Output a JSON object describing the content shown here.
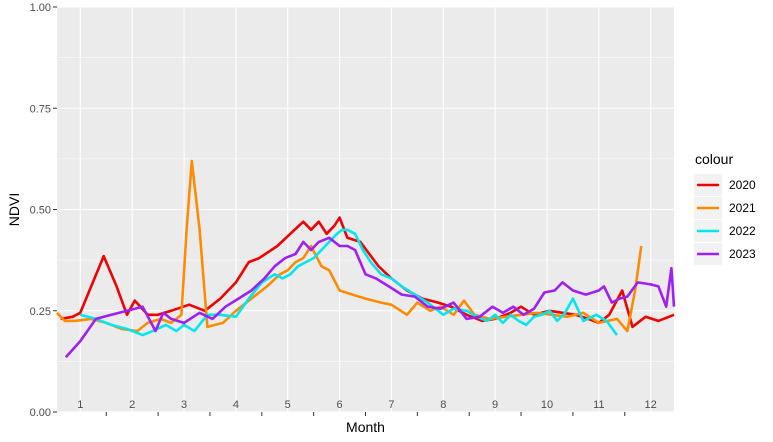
{
  "chart_data": {
    "type": "line",
    "title": "",
    "xlabel": "Month",
    "ylabel": "NDVI",
    "ylim": [
      0,
      1
    ],
    "xlim": [
      0.55,
      12.45
    ],
    "yticks": [
      0,
      0.25,
      0.5,
      0.75,
      1
    ],
    "ytick_labels": [
      "0.00",
      "0.25",
      "0.50",
      "0.75",
      "1.00"
    ],
    "month_labels": [
      "1",
      "2",
      "3",
      "4",
      "5",
      "6",
      "7",
      "8",
      "9",
      "10",
      "11",
      "12"
    ],
    "grid": true,
    "legend": {
      "title": "colour",
      "position": "right"
    },
    "series": [
      {
        "name": "2020",
        "color": "#ee0000",
        "x": [
          0.62,
          0.85,
          1.0,
          1.45,
          1.7,
          1.9,
          2.05,
          2.3,
          2.5,
          2.75,
          3.1,
          3.4,
          3.7,
          4.0,
          4.25,
          4.45,
          4.8,
          5.05,
          5.3,
          5.45,
          5.6,
          5.75,
          5.9,
          6.0,
          6.15,
          6.4,
          6.75,
          7.0,
          7.3,
          7.6,
          7.9,
          8.15,
          8.45,
          8.75,
          9.0,
          9.3,
          9.5,
          9.75,
          10.05,
          10.3,
          10.55,
          10.8,
          11.0,
          11.2,
          11.45,
          11.65,
          11.9,
          12.15,
          12.45
        ],
        "y": [
          0.23,
          0.235,
          0.245,
          0.385,
          0.31,
          0.24,
          0.275,
          0.24,
          0.24,
          0.25,
          0.265,
          0.25,
          0.28,
          0.32,
          0.37,
          0.38,
          0.41,
          0.44,
          0.47,
          0.45,
          0.47,
          0.44,
          0.46,
          0.48,
          0.43,
          0.42,
          0.36,
          0.33,
          0.3,
          0.28,
          0.27,
          0.26,
          0.24,
          0.225,
          0.23,
          0.245,
          0.26,
          0.24,
          0.25,
          0.245,
          0.24,
          0.23,
          0.22,
          0.24,
          0.3,
          0.21,
          0.235,
          0.225,
          0.24
        ]
      },
      {
        "name": "2021",
        "color": "#ff8c00",
        "x": [
          0.55,
          0.7,
          0.9,
          1.2,
          1.5,
          1.8,
          2.1,
          2.3,
          2.55,
          2.75,
          2.95,
          3.05,
          3.15,
          3.3,
          3.45,
          3.75,
          4.0,
          4.3,
          4.6,
          4.85,
          5.0,
          5.15,
          5.3,
          5.45,
          5.65,
          5.8,
          6.0,
          6.25,
          6.5,
          6.8,
          7.0,
          7.3,
          7.5,
          7.75,
          7.95,
          8.2,
          8.4,
          8.6,
          8.9,
          9.2,
          9.5,
          9.8,
          10.1,
          10.4,
          10.7,
          11.0,
          11.35,
          11.55,
          11.7,
          11.82
        ],
        "y": [
          0.245,
          0.225,
          0.225,
          0.23,
          0.22,
          0.205,
          0.2,
          0.22,
          0.23,
          0.22,
          0.24,
          0.45,
          0.62,
          0.45,
          0.21,
          0.22,
          0.25,
          0.28,
          0.31,
          0.34,
          0.35,
          0.37,
          0.38,
          0.41,
          0.36,
          0.35,
          0.3,
          0.29,
          0.28,
          0.27,
          0.265,
          0.24,
          0.27,
          0.25,
          0.26,
          0.24,
          0.275,
          0.24,
          0.23,
          0.235,
          0.24,
          0.245,
          0.24,
          0.235,
          0.245,
          0.22,
          0.23,
          0.2,
          0.3,
          0.41
        ]
      },
      {
        "name": "2022",
        "color": "#00e5ee",
        "x": [
          1.0,
          1.3,
          1.6,
          1.9,
          2.2,
          2.4,
          2.65,
          2.85,
          3.0,
          3.2,
          3.45,
          3.7,
          4.0,
          4.25,
          4.5,
          4.75,
          4.9,
          5.05,
          5.2,
          5.35,
          5.5,
          5.65,
          5.8,
          5.95,
          6.05,
          6.15,
          6.3,
          6.45,
          6.6,
          6.8,
          7.0,
          7.2,
          7.45,
          7.7,
          8.0,
          8.2,
          8.45,
          8.65,
          8.85,
          9.0,
          9.15,
          9.3,
          9.45,
          9.6,
          9.75,
          9.9,
          10.05,
          10.2,
          10.35,
          10.5,
          10.7,
          10.95,
          11.15,
          11.35
        ],
        "y": [
          0.24,
          0.23,
          0.215,
          0.205,
          0.19,
          0.2,
          0.215,
          0.2,
          0.215,
          0.2,
          0.24,
          0.24,
          0.235,
          0.28,
          0.32,
          0.34,
          0.33,
          0.34,
          0.36,
          0.37,
          0.38,
          0.4,
          0.42,
          0.44,
          0.45,
          0.45,
          0.44,
          0.4,
          0.37,
          0.34,
          0.33,
          0.31,
          0.29,
          0.27,
          0.24,
          0.255,
          0.25,
          0.235,
          0.225,
          0.24,
          0.22,
          0.24,
          0.225,
          0.215,
          0.235,
          0.24,
          0.25,
          0.225,
          0.245,
          0.28,
          0.225,
          0.24,
          0.225,
          0.19
        ]
      },
      {
        "name": "2023",
        "color": "#a020f0",
        "x": [
          0.72,
          1.0,
          1.3,
          1.6,
          1.9,
          2.2,
          2.45,
          2.6,
          2.75,
          3.0,
          3.3,
          3.55,
          3.8,
          4.05,
          4.3,
          4.55,
          4.75,
          4.95,
          5.15,
          5.3,
          5.45,
          5.6,
          5.8,
          6.0,
          6.15,
          6.3,
          6.5,
          6.7,
          6.95,
          7.2,
          7.45,
          7.7,
          7.95,
          8.2,
          8.45,
          8.7,
          8.95,
          9.15,
          9.35,
          9.55,
          9.75,
          9.95,
          10.15,
          10.3,
          10.5,
          10.75,
          11.0,
          11.1,
          11.25,
          11.4,
          11.55,
          11.75,
          12.0,
          12.15,
          12.3,
          12.4,
          12.45
        ],
        "y": [
          0.135,
          0.175,
          0.23,
          0.24,
          0.25,
          0.26,
          0.2,
          0.245,
          0.23,
          0.22,
          0.245,
          0.23,
          0.26,
          0.28,
          0.3,
          0.33,
          0.36,
          0.38,
          0.39,
          0.42,
          0.4,
          0.42,
          0.43,
          0.41,
          0.41,
          0.4,
          0.34,
          0.33,
          0.31,
          0.29,
          0.285,
          0.26,
          0.255,
          0.27,
          0.23,
          0.235,
          0.26,
          0.245,
          0.26,
          0.24,
          0.255,
          0.295,
          0.3,
          0.32,
          0.3,
          0.29,
          0.3,
          0.31,
          0.27,
          0.28,
          0.285,
          0.32,
          0.315,
          0.31,
          0.26,
          0.355,
          0.26
        ]
      }
    ]
  }
}
